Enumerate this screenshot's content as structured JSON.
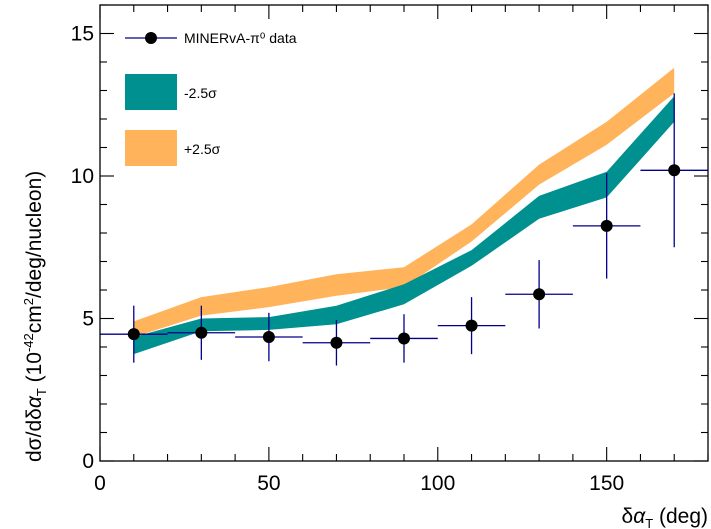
{
  "chart_data": {
    "type": "line",
    "title": "",
    "xlabel": "δαT (deg)",
    "ylabel": "dσ/dδαT (10^-42 cm^2/deg/nucleon)",
    "xlim": [
      0,
      180
    ],
    "ylim": [
      0,
      16
    ],
    "x_ticks": [
      "0",
      "50",
      "100",
      "150"
    ],
    "y_ticks": [
      "0",
      "5",
      "10",
      "15"
    ],
    "grid": false,
    "legend_position": "top-left",
    "legend": [
      "MINERvA-π⁰ data",
      "-2.5σ",
      "+2.5σ"
    ],
    "data_series": {
      "name": "MINERvA-π⁰ data",
      "color": "#00008b",
      "marker": "filled-circle",
      "points": [
        {
          "x": 10,
          "y": 4.45,
          "xerr": 10,
          "yerr": 1.0
        },
        {
          "x": 30,
          "y": 4.5,
          "xerr": 10,
          "yerr": 0.95
        },
        {
          "x": 50,
          "y": 4.35,
          "xerr": 10,
          "yerr": 0.85
        },
        {
          "x": 70,
          "y": 4.15,
          "xerr": 10,
          "yerr": 0.8
        },
        {
          "x": 90,
          "y": 4.3,
          "xerr": 10,
          "yerr": 0.85
        },
        {
          "x": 110,
          "y": 4.75,
          "xerr": 10,
          "yerr": 1.0
        },
        {
          "x": 130,
          "y": 5.85,
          "xerr": 10,
          "yerr": 1.2
        },
        {
          "x": 150,
          "y": 8.25,
          "xerr": 10,
          "yerr": 1.85
        },
        {
          "x": 170,
          "y": 10.2,
          "xerr": 10,
          "yerr": 2.7
        }
      ]
    },
    "bands": [
      {
        "name": "+2.5σ",
        "color": "#ffb35a",
        "x": [
          10,
          30,
          50,
          70,
          90,
          110,
          130,
          150,
          170
        ],
        "low": [
          4.35,
          5.1,
          5.4,
          5.8,
          6.1,
          7.7,
          9.7,
          11.1,
          12.9
        ],
        "high": [
          4.9,
          5.75,
          6.1,
          6.55,
          6.8,
          8.3,
          10.4,
          11.9,
          13.8
        ]
      },
      {
        "name": "-2.5σ",
        "color": "#009090",
        "x": [
          10,
          30,
          50,
          70,
          90,
          110,
          130,
          150,
          170
        ],
        "low": [
          3.75,
          4.55,
          4.6,
          4.8,
          5.5,
          6.85,
          8.5,
          9.25,
          11.9
        ],
        "high": [
          4.35,
          5.0,
          5.05,
          5.45,
          6.2,
          7.4,
          9.3,
          10.15,
          12.8
        ]
      }
    ]
  }
}
